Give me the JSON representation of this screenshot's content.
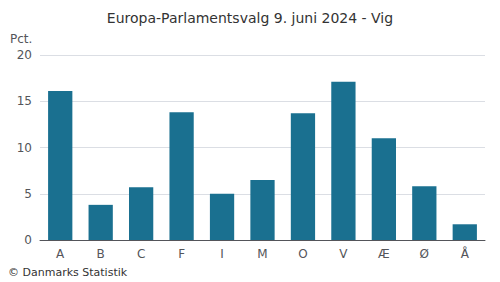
{
  "chart_data": {
    "type": "bar",
    "title": "Europa-Parlamentsvalg 9. juni 2024 - Vig",
    "categories": [
      "A",
      "B",
      "C",
      "F",
      "I",
      "M",
      "O",
      "V",
      "Æ",
      "Ø",
      "Å"
    ],
    "values": [
      16.1,
      3.8,
      5.7,
      13.8,
      5.0,
      6.5,
      13.7,
      17.1,
      11.0,
      5.8,
      1.7
    ],
    "color": "#1a7090",
    "ylabel": "Pct.",
    "annotations": [
      "© Danmarks Statistik"
    ],
    "ylim": [
      0,
      20
    ],
    "yticks": [
      0,
      5,
      10,
      15,
      20
    ],
    "grid": true
  }
}
